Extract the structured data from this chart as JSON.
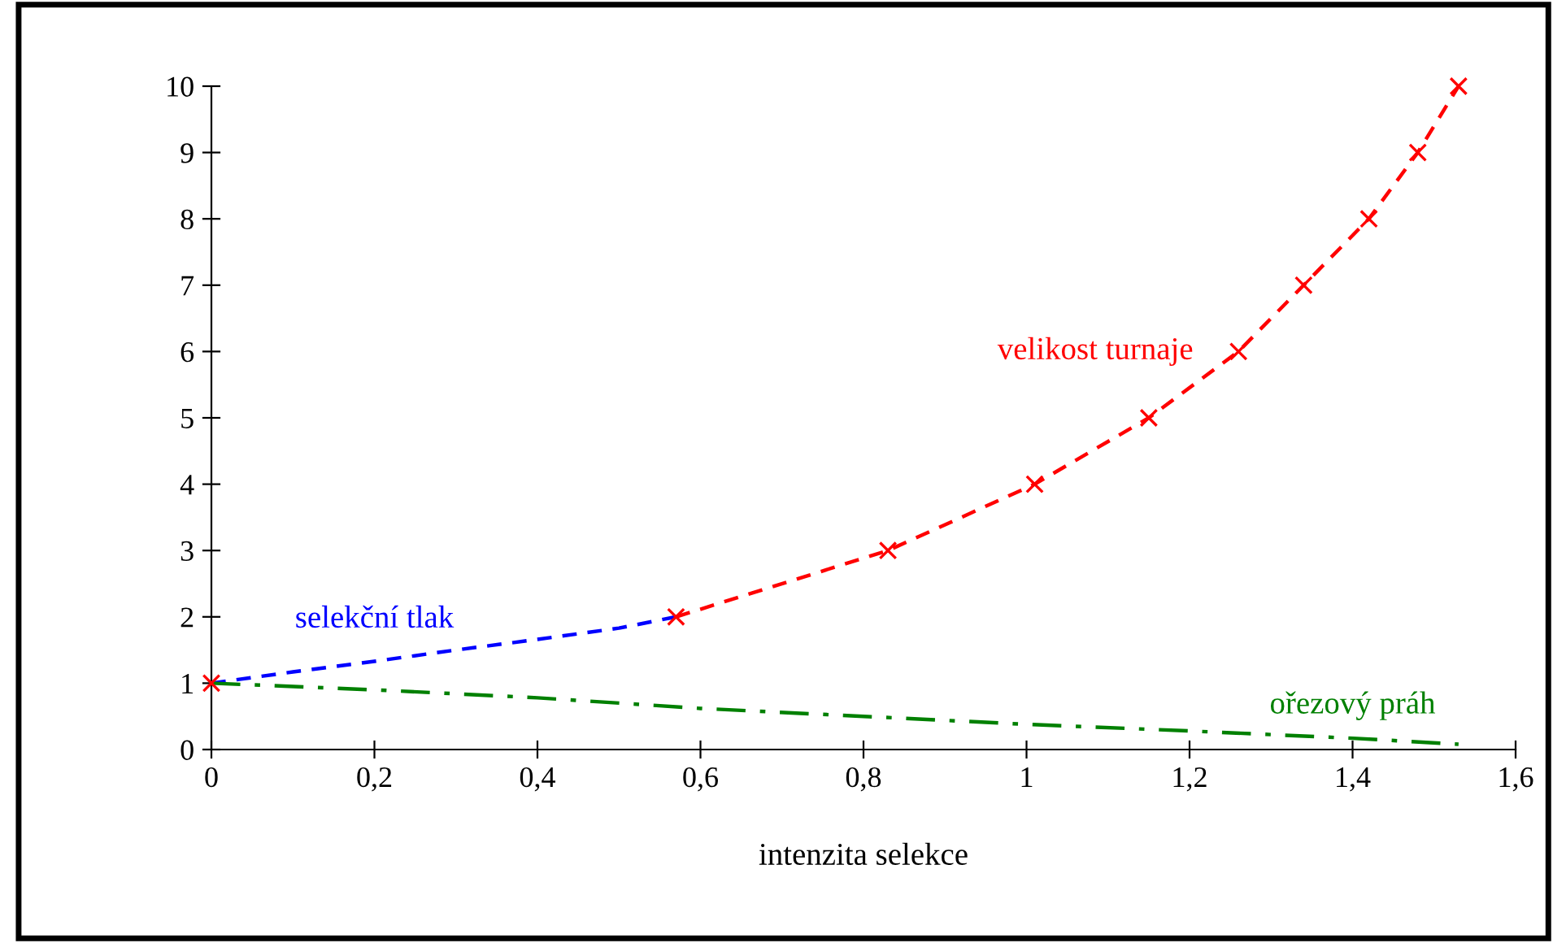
{
  "chart_data": {
    "type": "line",
    "xlabel": "intenzita selekce",
    "xlim": [
      0,
      1.6
    ],
    "ylim": [
      0,
      10
    ],
    "xticks": [
      0,
      {
        "value": 0.2,
        "label": "0,2"
      },
      {
        "value": 0.4,
        "label": "0,4"
      },
      {
        "value": 0.6,
        "label": "0,6"
      },
      {
        "value": 0.8,
        "label": "0,8"
      },
      1,
      {
        "value": 1.2,
        "label": "1,2"
      },
      {
        "value": 1.4,
        "label": "1,4"
      },
      {
        "value": 1.6,
        "label": "1,6"
      }
    ],
    "yticks": [
      0,
      1,
      2,
      3,
      4,
      5,
      6,
      7,
      8,
      9,
      10
    ],
    "grid": false,
    "legend": false,
    "series": [
      {
        "name": "velikost turnaje",
        "color": "#ff0000",
        "marker": "cross",
        "line_style": "dashed",
        "x": [
          0,
          0.3,
          0.57,
          0.83,
          1.01,
          1.15,
          1.26,
          1.34,
          1.42,
          1.48,
          1.53
        ],
        "values": [
          1,
          null,
          2,
          3,
          4,
          5,
          6,
          7,
          8,
          9,
          10
        ]
      },
      {
        "name": "selekční tlak",
        "color": "#0000ff",
        "marker": "none",
        "line_style": "dashed",
        "x": [
          0,
          0.1,
          0.2,
          0.3,
          0.4,
          0.5,
          0.57
        ],
        "values": [
          1,
          1.17,
          1.33,
          1.5,
          1.66,
          1.83,
          2
        ]
      },
      {
        "name": "ořezový práh",
        "color": "#008000",
        "marker": "none",
        "line_style": "dashdot",
        "x": [
          0,
          0.2,
          0.4,
          0.6,
          0.8,
          1.0,
          1.2,
          1.4,
          1.53
        ],
        "values": [
          1,
          0.9,
          0.78,
          0.62,
          0.5,
          0.38,
          0.28,
          0.17,
          0.08
        ]
      }
    ]
  }
}
